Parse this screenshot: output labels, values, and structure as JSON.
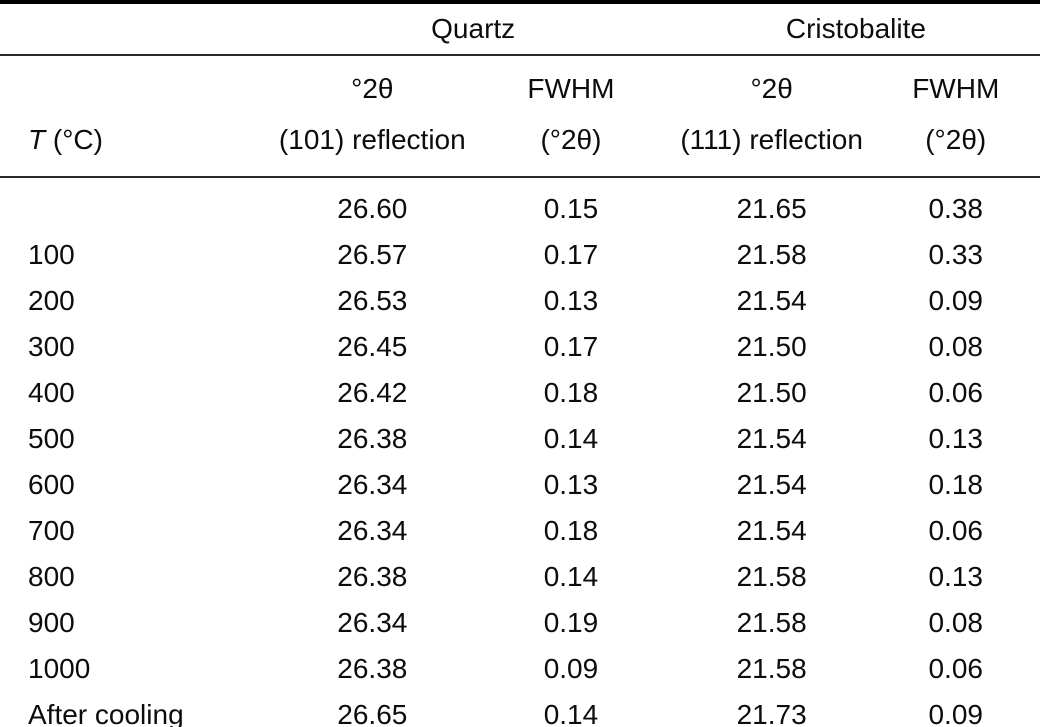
{
  "table": {
    "group_header": {
      "quartz": "Quartz",
      "cristobalite": "Cristobalite"
    },
    "headers": {
      "temperature": {
        "symbol": "T",
        "unit": " (°C)"
      },
      "quartz_2theta": {
        "line1": "°2θ",
        "line2": "(101) reflection"
      },
      "quartz_fwhm": {
        "line1": "FWHM",
        "line2": "(°2θ)"
      },
      "cristobalite_2theta": {
        "line1": "°2θ",
        "line2": "(111) reflection"
      },
      "cristobalite_fwhm": {
        "line1": "FWHM",
        "line2": "(°2θ)"
      }
    },
    "field_names": [
      "temperature",
      "quartz-2theta",
      "quartz-fwhm",
      "cristobalite-2theta",
      "cristobalite-fwhm"
    ],
    "rows": [
      [
        "",
        "26.60",
        "0.15",
        "21.65",
        "0.38"
      ],
      [
        "100",
        "26.57",
        "0.17",
        "21.58",
        "0.33"
      ],
      [
        "200",
        "26.53",
        "0.13",
        "21.54",
        "0.09"
      ],
      [
        "300",
        "26.45",
        "0.17",
        "21.50",
        "0.08"
      ],
      [
        "400",
        "26.42",
        "0.18",
        "21.50",
        "0.06"
      ],
      [
        "500",
        "26.38",
        "0.14",
        "21.54",
        "0.13"
      ],
      [
        "600",
        "26.34",
        "0.13",
        "21.54",
        "0.18"
      ],
      [
        "700",
        "26.34",
        "0.18",
        "21.54",
        "0.06"
      ],
      [
        "800",
        "26.38",
        "0.14",
        "21.58",
        "0.13"
      ],
      [
        "900",
        "26.34",
        "0.19",
        "21.58",
        "0.08"
      ],
      [
        "1000",
        "26.38",
        "0.09",
        "21.58",
        "0.06"
      ],
      [
        "After cooling",
        "26.65",
        "0.14",
        "21.73",
        "0.09"
      ]
    ]
  },
  "colors": {
    "background": "#ffffff",
    "text": "#0c0c0c",
    "rule_thick": "#000000",
    "rule_thin": "#2a2a2a"
  },
  "chart_data": {
    "type": "table",
    "column_groups": [
      "",
      "Quartz",
      "Quartz",
      "Cristobalite",
      "Cristobalite"
    ],
    "columns": [
      "T (°C)",
      "°2θ (101) reflection",
      "FWHM (°2θ)",
      "°2θ (111) reflection",
      "FWHM (°2θ)"
    ],
    "rows": [
      [
        "",
        26.6,
        0.15,
        21.65,
        0.38
      ],
      [
        "100",
        26.57,
        0.17,
        21.58,
        0.33
      ],
      [
        "200",
        26.53,
        0.13,
        21.54,
        0.09
      ],
      [
        "300",
        26.45,
        0.17,
        21.5,
        0.08
      ],
      [
        "400",
        26.42,
        0.18,
        21.5,
        0.06
      ],
      [
        "500",
        26.38,
        0.14,
        21.54,
        0.13
      ],
      [
        "600",
        26.34,
        0.13,
        21.54,
        0.18
      ],
      [
        "700",
        26.34,
        0.18,
        21.54,
        0.06
      ],
      [
        "800",
        26.38,
        0.14,
        21.58,
        0.13
      ],
      [
        "900",
        26.34,
        0.19,
        21.58,
        0.08
      ],
      [
        "1000",
        26.38,
        0.09,
        21.58,
        0.06
      ],
      [
        "After cooling",
        26.65,
        0.14,
        21.73,
        0.09
      ]
    ]
  }
}
